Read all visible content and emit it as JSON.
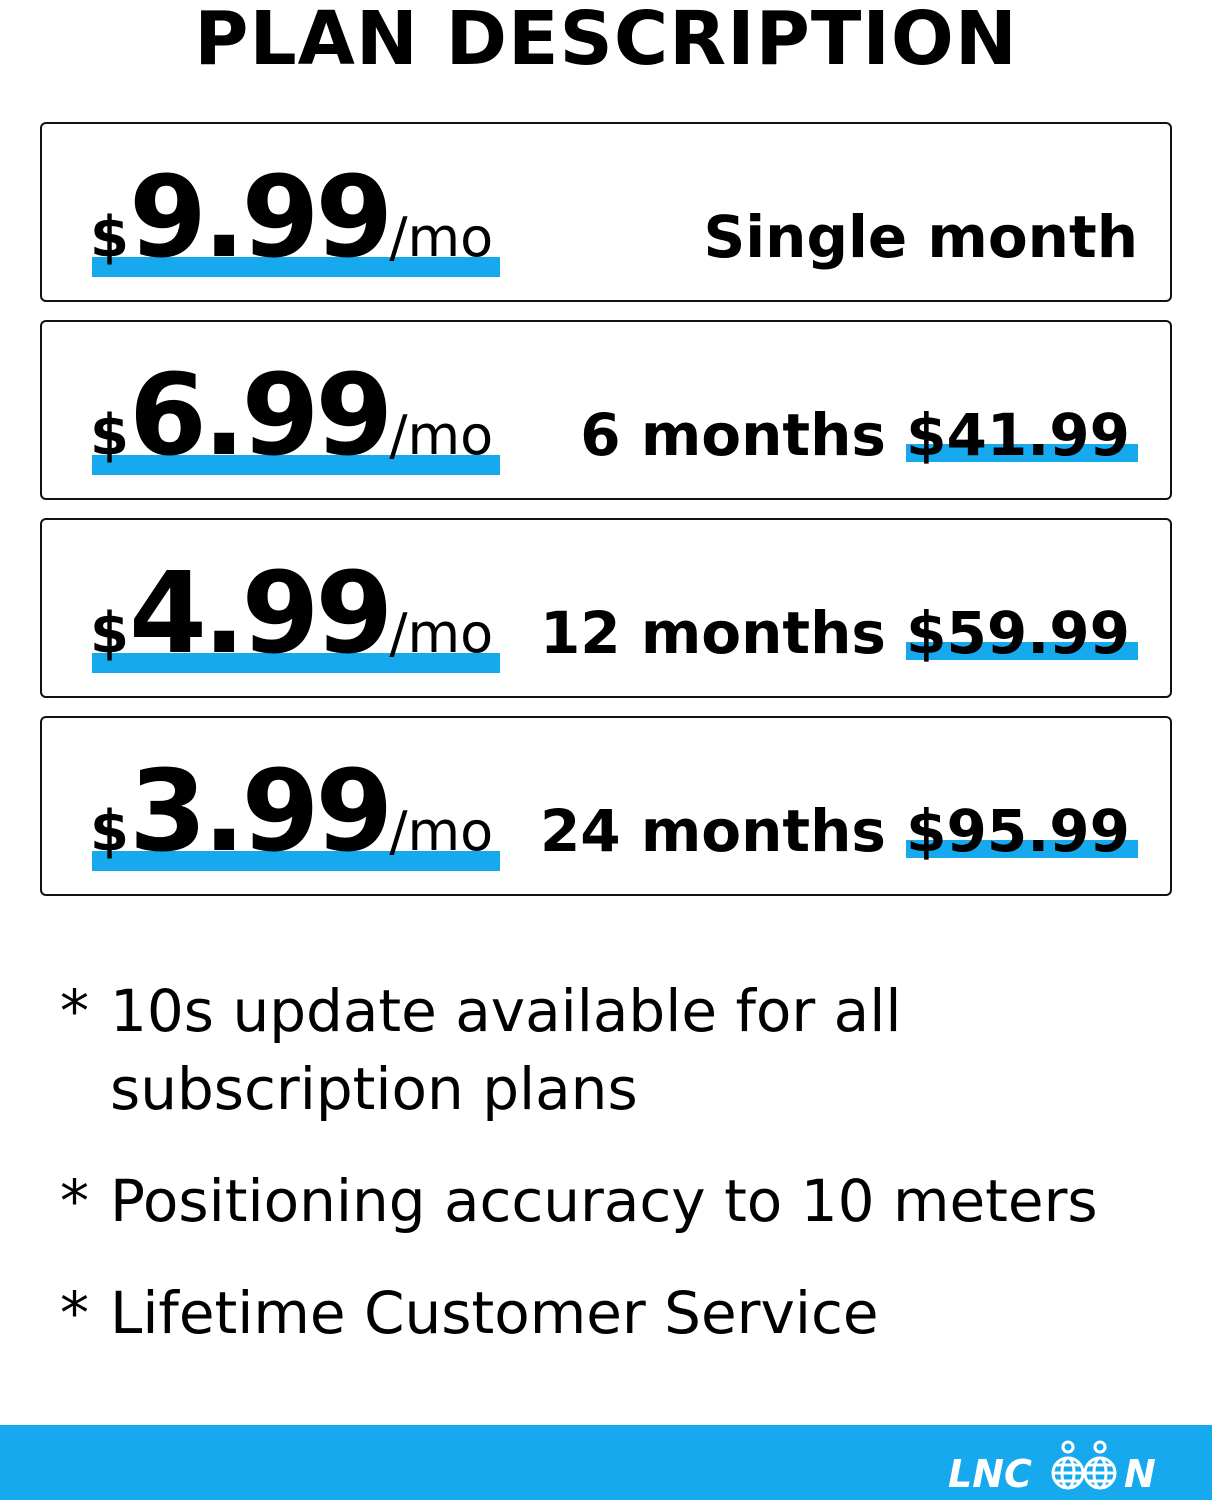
{
  "title": "PLAN DESCRIPTION",
  "plans": [
    {
      "currency": "$",
      "amount": "9.99",
      "per": "/mo",
      "description": "Single month",
      "total": ""
    },
    {
      "currency": "$",
      "amount": "6.99",
      "per": "/mo",
      "description": "6 months",
      "total": "$41.99"
    },
    {
      "currency": "$",
      "amount": "4.99",
      "per": "/mo",
      "description": "12 months",
      "total": "$59.99"
    },
    {
      "currency": "$",
      "amount": "3.99",
      "per": "/mo",
      "description": "24 months",
      "total": "$95.99"
    }
  ],
  "notes": [
    {
      "star": "*",
      "line1": "10s update available for all",
      "line2": "subscription plans"
    },
    {
      "star": "*",
      "line1": "Positioning accuracy to 10 meters"
    },
    {
      "star": "*",
      "line1": "Lifetime Customer Service"
    }
  ],
  "footer": {
    "logo_text": "LNCOON"
  },
  "colors": {
    "accent": "#16a9ee",
    "text": "#000000",
    "border": "#111111"
  }
}
